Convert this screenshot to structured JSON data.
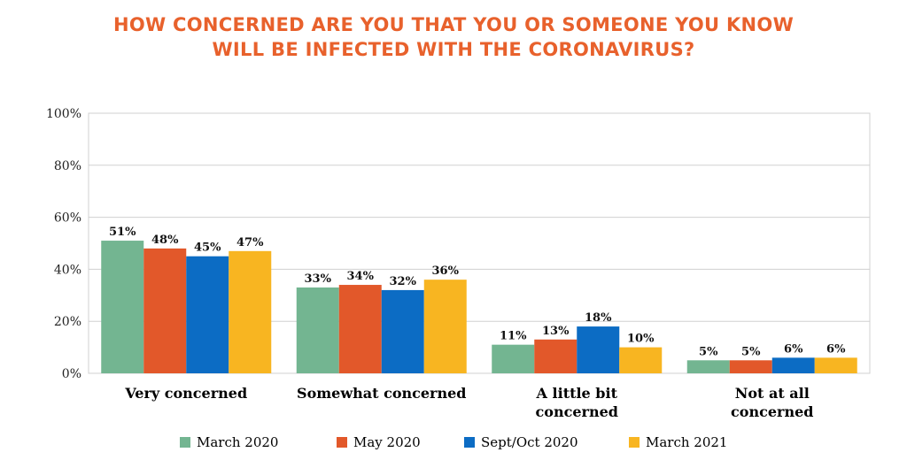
{
  "title": {
    "line1": "HOW CONCERNED ARE YOU THAT YOU OR SOMEONE YOU KNOW",
    "line2": "WILL BE INFECTED WITH THE CORONAVIRUS?"
  },
  "chart_data": {
    "type": "bar",
    "title": "HOW CONCERNED ARE YOU THAT YOU OR SOMEONE YOU KNOW WILL BE INFECTED WITH THE CORONAVIRUS?",
    "categories": [
      [
        "Very concerned"
      ],
      [
        "Somewhat concerned"
      ],
      [
        "A little bit",
        "concerned"
      ],
      [
        "Not at all",
        "concerned"
      ]
    ],
    "series": [
      {
        "name": "March 2020",
        "color": "#73B591",
        "values": [
          51,
          33,
          11,
          5
        ],
        "labels": [
          "51%",
          "33%",
          "11%",
          "5%"
        ]
      },
      {
        "name": "May 2020",
        "color": "#E2582A",
        "values": [
          48,
          34,
          13,
          5
        ],
        "labels": [
          "48%",
          "34%",
          "13%",
          "5%"
        ]
      },
      {
        "name": "Sept/Oct 2020",
        "color": "#0C6CC4",
        "values": [
          45,
          32,
          18,
          6
        ],
        "labels": [
          "45%",
          "32%",
          "18%",
          "6%"
        ]
      },
      {
        "name": "March 2021",
        "color": "#F8B521",
        "values": [
          47,
          36,
          10,
          6
        ],
        "labels": [
          "47%",
          "36%",
          "10%",
          "6%"
        ]
      }
    ],
    "yticks": [
      "0%",
      "20%",
      "40%",
      "60%",
      "80%",
      "100%"
    ],
    "ylim": [
      0,
      100
    ],
    "grid": true,
    "legend": "bottom"
  }
}
